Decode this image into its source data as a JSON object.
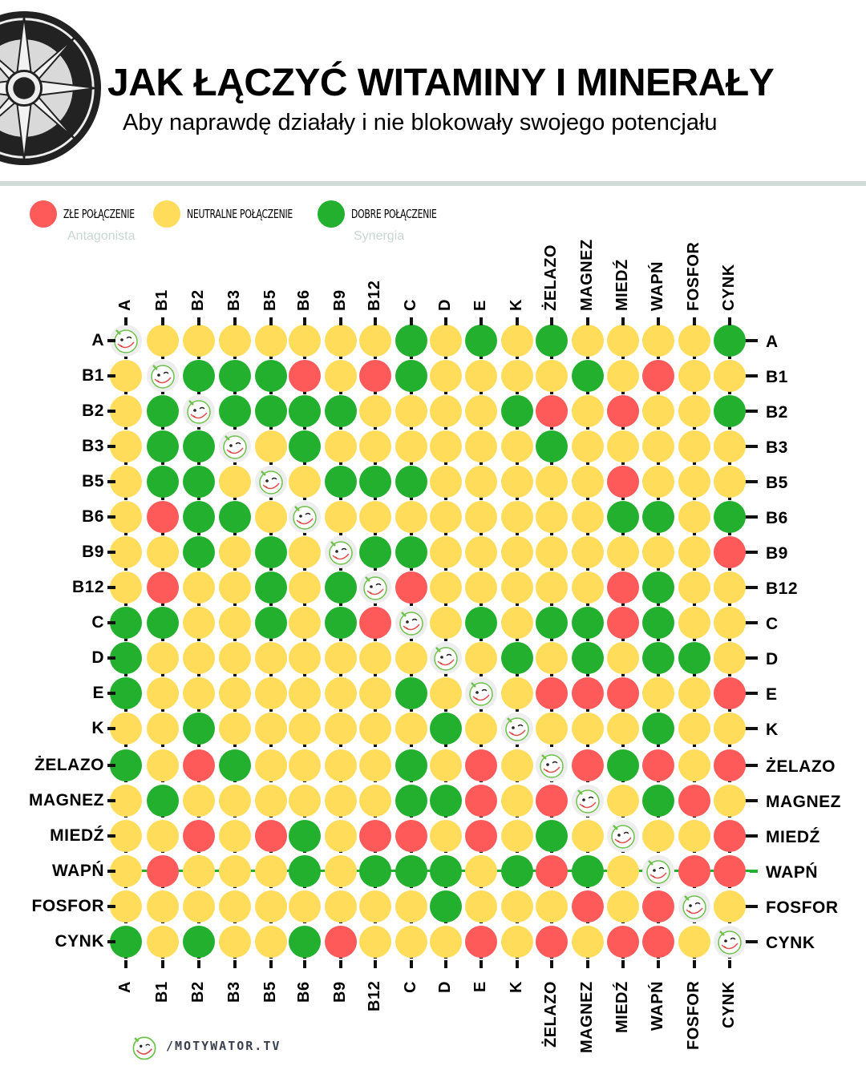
{
  "header": {
    "title": "JAK ŁĄCZYĆ WITAMINY I MINERAŁY",
    "subtitle": "Aby naprawdę działały i nie blokowały swojego potencjału",
    "logo_icon": "compass-rose-icon"
  },
  "legend": [
    {
      "key": "bad",
      "label": "ZŁE POŁĄCZENIE",
      "sublabel": "Antagonista",
      "color": "#ff5a5a"
    },
    {
      "key": "neutral",
      "label": "NEUTRALNE POŁĄCZENIE",
      "sublabel": "",
      "color": "#ffdc5a"
    },
    {
      "key": "good",
      "label": "DOBRE POŁĄCZENIE",
      "sublabel": "Synergia",
      "color": "#22b02e"
    }
  ],
  "colors": {
    "bad": "#ff5a5a",
    "neutral": "#ffdc5a",
    "good": "#22b02e",
    "self": "#eeeeee",
    "divider": "#cfdcd8",
    "legend_sub": "#c9d6d2",
    "highlight_row_line": "#22b02e"
  },
  "footer": {
    "brand": "/MOTYWATOR.TV",
    "brand_icon": "smiling-face-logo-icon"
  },
  "chart_data": {
    "type": "heatmap",
    "title": "JAK ŁĄCZYĆ WITAMINY I MINERAŁY",
    "subtitle": "Aby naprawdę działały i nie blokowały swojego potencjału",
    "xlabel": "",
    "ylabel": "",
    "legend_position": "top-left",
    "value_legend": {
      "R": "ZŁE POŁĄCZENIE (Antagonista)",
      "Y": "NEUTRALNE POŁĄCZENIE",
      "G": "DOBRE POŁĄCZENIE (Synergia)",
      "S": "self (same nutrient, face icon)"
    },
    "categories": [
      "A",
      "B1",
      "B2",
      "B3",
      "B5",
      "B6",
      "B9",
      "B12",
      "C",
      "D",
      "E",
      "K",
      "ŻELAZO",
      "MAGNEZ",
      "MIEDŹ",
      "WAPŃ",
      "FOSFOR",
      "CYNK"
    ],
    "highlighted_row": "WAPŃ",
    "matrix": [
      [
        "S",
        "Y",
        "Y",
        "Y",
        "Y",
        "Y",
        "Y",
        "Y",
        "G",
        "Y",
        "G",
        "Y",
        "G",
        "Y",
        "Y",
        "Y",
        "Y",
        "G"
      ],
      [
        "Y",
        "S",
        "G",
        "G",
        "G",
        "R",
        "Y",
        "R",
        "G",
        "Y",
        "Y",
        "Y",
        "Y",
        "G",
        "Y",
        "R",
        "Y",
        "Y"
      ],
      [
        "Y",
        "G",
        "S",
        "G",
        "G",
        "G",
        "G",
        "Y",
        "Y",
        "Y",
        "Y",
        "G",
        "R",
        "Y",
        "R",
        "Y",
        "Y",
        "G"
      ],
      [
        "Y",
        "G",
        "G",
        "S",
        "Y",
        "G",
        "Y",
        "Y",
        "Y",
        "Y",
        "Y",
        "Y",
        "G",
        "Y",
        "Y",
        "Y",
        "Y",
        "Y"
      ],
      [
        "Y",
        "G",
        "G",
        "Y",
        "S",
        "Y",
        "G",
        "G",
        "G",
        "Y",
        "Y",
        "Y",
        "Y",
        "Y",
        "R",
        "Y",
        "Y",
        "Y"
      ],
      [
        "Y",
        "R",
        "G",
        "G",
        "Y",
        "S",
        "Y",
        "Y",
        "Y",
        "Y",
        "Y",
        "Y",
        "Y",
        "Y",
        "G",
        "G",
        "Y",
        "G"
      ],
      [
        "Y",
        "Y",
        "G",
        "Y",
        "G",
        "Y",
        "S",
        "G",
        "G",
        "Y",
        "Y",
        "Y",
        "Y",
        "Y",
        "Y",
        "Y",
        "Y",
        "R"
      ],
      [
        "Y",
        "R",
        "Y",
        "Y",
        "G",
        "Y",
        "G",
        "S",
        "R",
        "Y",
        "Y",
        "Y",
        "Y",
        "Y",
        "R",
        "G",
        "Y",
        "Y"
      ],
      [
        "G",
        "G",
        "Y",
        "Y",
        "G",
        "Y",
        "G",
        "R",
        "S",
        "Y",
        "G",
        "Y",
        "G",
        "G",
        "R",
        "G",
        "Y",
        "Y"
      ],
      [
        "G",
        "Y",
        "Y",
        "Y",
        "Y",
        "Y",
        "Y",
        "Y",
        "Y",
        "S",
        "Y",
        "G",
        "Y",
        "G",
        "Y",
        "G",
        "G",
        "Y"
      ],
      [
        "G",
        "Y",
        "Y",
        "Y",
        "Y",
        "Y",
        "Y",
        "Y",
        "G",
        "Y",
        "S",
        "Y",
        "R",
        "R",
        "R",
        "Y",
        "Y",
        "R"
      ],
      [
        "Y",
        "Y",
        "G",
        "Y",
        "Y",
        "Y",
        "Y",
        "Y",
        "Y",
        "G",
        "Y",
        "S",
        "Y",
        "Y",
        "Y",
        "G",
        "Y",
        "Y"
      ],
      [
        "G",
        "Y",
        "R",
        "G",
        "Y",
        "Y",
        "Y",
        "Y",
        "G",
        "Y",
        "R",
        "Y",
        "S",
        "R",
        "G",
        "R",
        "Y",
        "R"
      ],
      [
        "Y",
        "G",
        "Y",
        "Y",
        "Y",
        "Y",
        "Y",
        "Y",
        "G",
        "G",
        "R",
        "Y",
        "R",
        "S",
        "Y",
        "G",
        "R",
        "Y"
      ],
      [
        "Y",
        "Y",
        "R",
        "Y",
        "R",
        "G",
        "Y",
        "R",
        "R",
        "Y",
        "R",
        "Y",
        "G",
        "Y",
        "S",
        "Y",
        "Y",
        "R"
      ],
      [
        "Y",
        "R",
        "Y",
        "Y",
        "Y",
        "G",
        "Y",
        "G",
        "G",
        "G",
        "Y",
        "G",
        "R",
        "G",
        "Y",
        "S",
        "R",
        "R"
      ],
      [
        "Y",
        "Y",
        "Y",
        "Y",
        "Y",
        "Y",
        "Y",
        "Y",
        "Y",
        "G",
        "Y",
        "Y",
        "Y",
        "R",
        "Y",
        "R",
        "S",
        "Y"
      ],
      [
        "G",
        "Y",
        "G",
        "Y",
        "Y",
        "G",
        "R",
        "Y",
        "Y",
        "Y",
        "R",
        "Y",
        "R",
        "Y",
        "R",
        "R",
        "Y",
        "S"
      ]
    ]
  }
}
